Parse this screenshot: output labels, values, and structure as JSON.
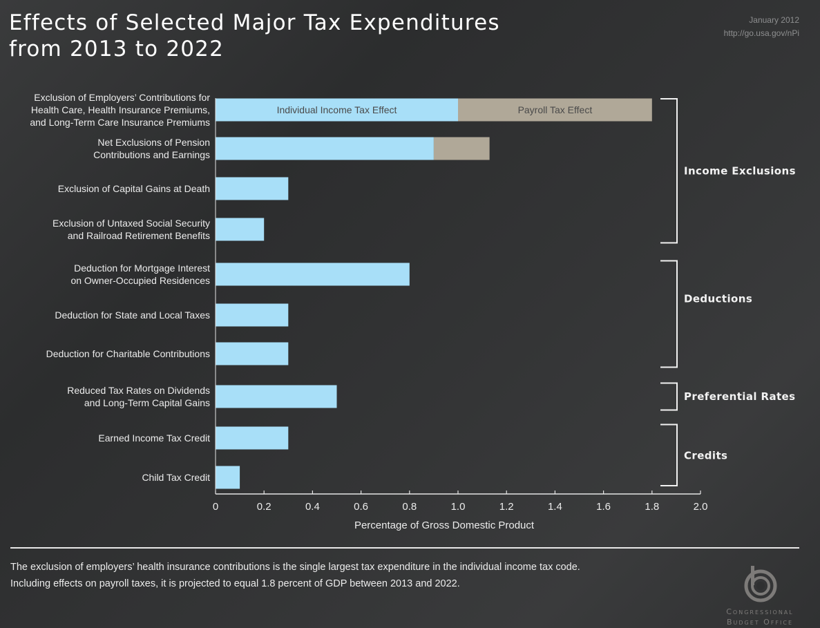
{
  "header": {
    "title_line1": "Effects of Selected Major Tax Expenditures",
    "title_line2": "from 2013 to 2022",
    "date": "January 2012",
    "url": "http://go.usa.gov/nPi"
  },
  "chart_data": {
    "type": "bar",
    "orientation": "horizontal",
    "stacked": true,
    "title": "Effects of Selected Major Tax Expenditures from 2013 to 2022",
    "xlabel": "Percentage of Gross Domestic Product",
    "ylabel": "",
    "xlim": [
      0,
      2.0
    ],
    "xticks": [
      "0",
      "0.2",
      "0.4",
      "0.6",
      "0.8",
      "1.0",
      "1.2",
      "1.4",
      "1.6",
      "1.8",
      "2.0"
    ],
    "grid": false,
    "colors": {
      "individual": "#a8dff8",
      "payroll": "#b0a898"
    },
    "series_labels_in_bar": [
      "Individual Income Tax Effect",
      "Payroll Tax Effect"
    ],
    "categories": [
      [
        "Exclusion of Employers’ Contributions for",
        "Health Care, Health Insurance Premiums,",
        "and Long-Term Care Insurance Premiums"
      ],
      [
        "Net Exclusions of Pension",
        "Contributions and Earnings"
      ],
      [
        "Exclusion of Capital Gains at Death"
      ],
      [
        "Exclusion of Untaxed Social Security",
        "and Railroad Retirement Benefits"
      ],
      [
        "Deduction for Mortgage Interest",
        "on Owner-Occupied Residences"
      ],
      [
        "Deduction for State and Local Taxes"
      ],
      [
        "Deduction for Charitable Contributions"
      ],
      [
        "Reduced Tax Rates on Dividends",
        "and Long-Term Capital Gains"
      ],
      [
        "Earned Income Tax Credit"
      ],
      [
        "Child Tax Credit"
      ]
    ],
    "series": [
      {
        "name": "Individual Income Tax Effect",
        "values": [
          1.0,
          0.9,
          0.3,
          0.2,
          0.8,
          0.3,
          0.3,
          0.5,
          0.3,
          0.1
        ]
      },
      {
        "name": "Payroll Tax Effect",
        "values": [
          0.8,
          0.23,
          0,
          0,
          0,
          0,
          0,
          0,
          0,
          0
        ]
      }
    ],
    "groups": [
      {
        "label": "Income Exclusions",
        "first": 0,
        "last": 3
      },
      {
        "label": "Deductions",
        "first": 4,
        "last": 6
      },
      {
        "label": "Preferential Rates",
        "first": 7,
        "last": 7
      },
      {
        "label": "Credits",
        "first": 8,
        "last": 9
      }
    ]
  },
  "footer": {
    "note_line1": "The exclusion of employers’ health insurance contributions is the single largest tax expenditure in the individual income tax code.",
    "note_line2": "Including effects on payroll taxes, it is projected to equal 1.8 percent of GDP between 2013 and 2022.",
    "logo_line1": "Congressional",
    "logo_line2": "Budget Office"
  }
}
